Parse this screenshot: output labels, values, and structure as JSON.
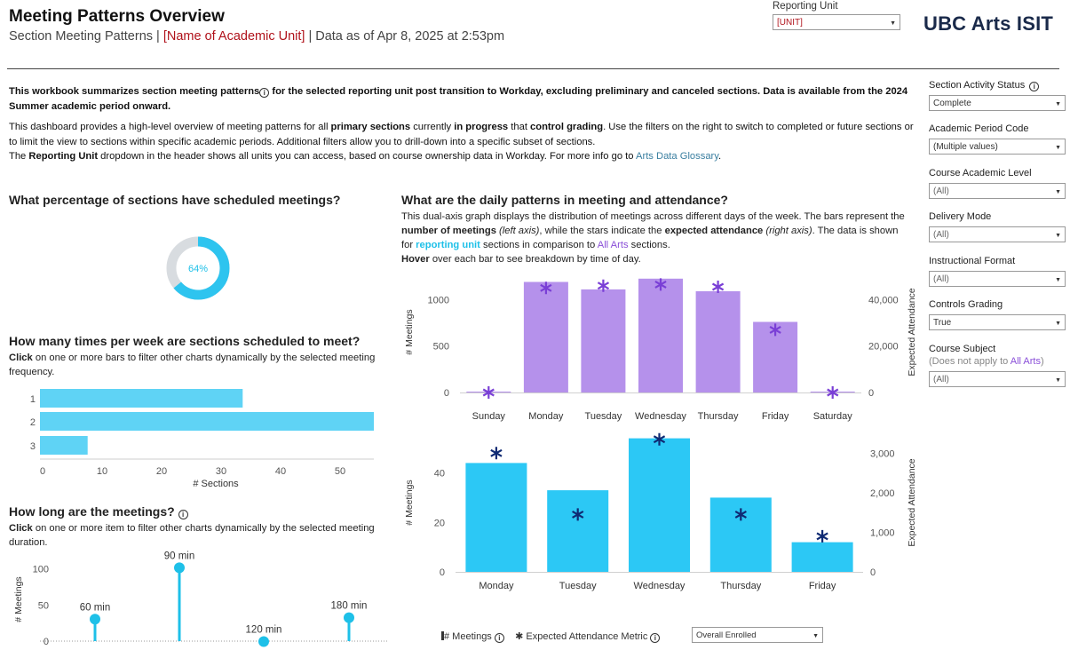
{
  "header": {
    "title": "Meeting Patterns Overview",
    "subtitle_prefix": "Section Meeting Patterns | ",
    "subtitle_unit": "[Name of Academic Unit]",
    "subtitle_suffix": " | Data as of Apr 8, 2025 at 2:53pm",
    "reporting_unit_label": "Reporting Unit",
    "reporting_unit_value": "[UNIT]",
    "logo": "UBC Arts ISIT"
  },
  "intro": {
    "p1_a": "This workbook summarizes section meeting patterns",
    "p1_b": " for the selected reporting unit post transition to Workday, excluding preliminary and canceled sections. Data is available from the 2024 Summer academic period onward.",
    "p2_a": "This dashboard provides a high-level overview of meeting patterns for all ",
    "p2_b": "primary sections",
    "p2_c": " currently ",
    "p2_d": "in progress",
    "p2_e": " that ",
    "p2_f": "control grading",
    "p2_g": ". Use the filters on the right to switch to completed or future sections or to limit the view to sections within specific academic periods. Additional filters allow you to drill-down into a specific subset of sections.",
    "p3_a": "The ",
    "p3_b": "Reporting Unit",
    "p3_c": " dropdown in the header shows all units you can access, based on course ownership data in Workday. For more info go to ",
    "p3_link": "Arts Data Glossary",
    "p3_end": "."
  },
  "donut": {
    "title": "What percentage of sections have scheduled meetings?",
    "value": 64,
    "label": "64%",
    "color_fill": "#2ec4ef",
    "color_rest": "#d8dce0"
  },
  "freq": {
    "title": "How many times per week are sections scheduled to meet?",
    "sub_a": "Click",
    "sub_b": " on one or more bars to filter other charts dynamically by the selected meeting frequency.",
    "xlabel": "# Sections"
  },
  "duration": {
    "title": "How long are the meetings?",
    "sub_a": "Click",
    "sub_b": " on one or more item to filter other charts dynamically by the selected meeting duration.",
    "ylabel": "# Meetings"
  },
  "daily": {
    "title": "What are the daily patterns in meeting and attendance?",
    "d1": "This dual-axis graph displays the distribution of meetings across different days of the week. The bars represent the ",
    "d2": "number of meetings",
    "d3": " ",
    "d4": "(left axis)",
    "d5": ", while the stars indicate the ",
    "d6": "expected attendance",
    "d7": " ",
    "d8": "(right axis)",
    "d9": ". The data is shown for ",
    "d10": "reporting unit",
    "d11": " sections in comparison to ",
    "d12": "All Arts",
    "d13": " sections.",
    "d14": "Hover",
    "d15": " over each bar to see breakdown by time of day.",
    "ylabel_left": "# Meetings",
    "ylabel_right": "Expected Attendance"
  },
  "legend": {
    "meetings": "# Meetings",
    "attendance": "Expected Attendance Metric",
    "metric_value": "Overall Enrolled"
  },
  "filters": [
    {
      "label": "Section Activity Status",
      "value": "Complete",
      "info": true,
      "grey": false
    },
    {
      "label": "Academic Period Code",
      "value": "(Multiple values)",
      "info": false,
      "grey": false
    },
    {
      "label": "Course Academic Level",
      "value": "(All)",
      "info": false,
      "grey": true
    },
    {
      "label": "Delivery Mode",
      "value": "(All)",
      "info": false,
      "grey": true
    },
    {
      "label": "Instructional Format",
      "value": "(All)",
      "info": false,
      "grey": true
    },
    {
      "label": "Controls Grading",
      "value": "True",
      "info": false,
      "grey": false
    },
    {
      "label": "Course Subject",
      "value": "(All)",
      "info": false,
      "grey": true
    }
  ],
  "filter_note": {
    "a": "(Does not apply to ",
    "b": "All Arts",
    "c": ")"
  },
  "chart_data": [
    {
      "type": "pie",
      "title": "What percentage of sections have scheduled meetings?",
      "values": [
        64,
        36
      ],
      "data_labels": [
        "64%"
      ]
    },
    {
      "type": "bar",
      "orientation": "horizontal",
      "title": "How many times per week are sections scheduled to meet?",
      "categories": [
        "1",
        "2",
        "3"
      ],
      "values": [
        34,
        56,
        8
      ],
      "xlabel": "# Sections",
      "xlim": [
        0,
        56
      ],
      "ticks": [
        "0",
        "10",
        "20",
        "30",
        "40",
        "50"
      ],
      "color": "#5fd3f5"
    },
    {
      "type": "scatter",
      "subtype": "lollipop",
      "title": "How long are the meetings?",
      "categories": [
        "60 min",
        "90 min",
        "120 min",
        "180 min"
      ],
      "values": [
        34,
        105,
        3,
        36
      ],
      "ylabel": "# Meetings",
      "ylim": [
        0,
        110
      ],
      "yticks": [
        "0",
        "50",
        "100"
      ],
      "color": "#1ec0e8"
    },
    {
      "type": "bar",
      "title": "All Arts",
      "categories": [
        "Sunday",
        "Monday",
        "Tuesday",
        "Wednesday",
        "Thursday",
        "Friday",
        "Saturday"
      ],
      "series": [
        {
          "name": "# Meetings",
          "values": [
            5,
            1190,
            1110,
            1225,
            1090,
            760,
            5
          ],
          "axis": "left"
        },
        {
          "name": "Expected Attendance",
          "values": [
            0,
            45000,
            46000,
            46500,
            45500,
            27000,
            0
          ],
          "axis": "right",
          "marker": "star"
        }
      ],
      "ylabel": "# Meetings",
      "ylabel_right": "Expected Attendance",
      "ylim": [
        0,
        1300
      ],
      "ylim_right": [
        0,
        52000
      ],
      "yticks": [
        "0",
        "500",
        "1000"
      ],
      "yticks_right": [
        "0",
        "20,000",
        "40,000"
      ],
      "bar_color": "#b591eb",
      "star_color": "#7a3fd6"
    },
    {
      "type": "bar",
      "title": "reporting unit",
      "categories": [
        "Monday",
        "Tuesday",
        "Wednesday",
        "Thursday",
        "Friday"
      ],
      "series": [
        {
          "name": "# Meetings",
          "values": [
            44,
            33,
            54,
            30,
            12
          ],
          "axis": "left"
        },
        {
          "name": "Expected Attendance",
          "values": [
            3000,
            1450,
            3350,
            1450,
            900
          ],
          "axis": "right",
          "marker": "star"
        }
      ],
      "ylabel": "# Meetings",
      "ylabel_right": "Expected Attendance",
      "ylim": [
        0,
        56
      ],
      "ylim_right": [
        0,
        3500
      ],
      "yticks": [
        "0",
        "20",
        "40"
      ],
      "yticks_right": [
        "0",
        "1,000",
        "2,000",
        "3,000"
      ],
      "bar_color": "#2cc8f5",
      "star_color": "#0f2a73"
    }
  ]
}
